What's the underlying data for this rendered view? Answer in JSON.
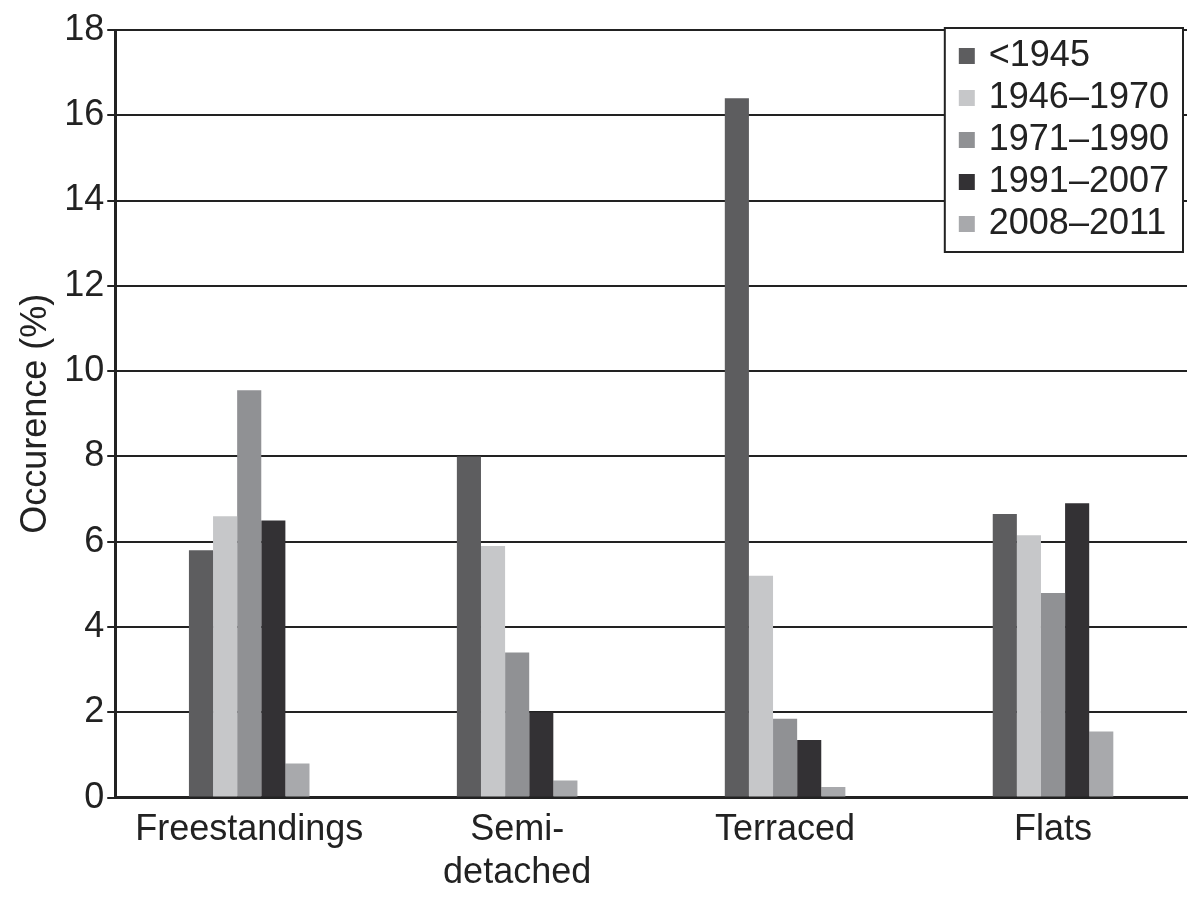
{
  "chart_data": {
    "type": "bar",
    "ylabel": "Occurence (%)",
    "categories": [
      "Freestandings",
      "Semi-detached",
      "Terraced",
      "Flats"
    ],
    "series": [
      {
        "name": "<1945",
        "color": "#5d5d5f",
        "values": [
          5.8,
          8.0,
          16.4,
          6.65
        ]
      },
      {
        "name": "1946–1970",
        "color": "#c6c7c9",
        "values": [
          6.6,
          5.9,
          5.2,
          6.15
        ]
      },
      {
        "name": "1971–1990",
        "color": "#909194",
        "values": [
          9.55,
          3.4,
          1.85,
          4.8
        ]
      },
      {
        "name": "1991–2007",
        "color": "#333134",
        "values": [
          6.5,
          2.0,
          1.35,
          6.9
        ]
      },
      {
        "name": "2008–2011",
        "color": "#a8a9ac",
        "values": [
          0.8,
          0.4,
          0.25,
          1.55
        ]
      }
    ],
    "ylim": [
      0,
      18
    ],
    "yticks": [
      0,
      2,
      4,
      6,
      8,
      10,
      12,
      14,
      16,
      18
    ],
    "grid": "y",
    "legend": "top right"
  }
}
